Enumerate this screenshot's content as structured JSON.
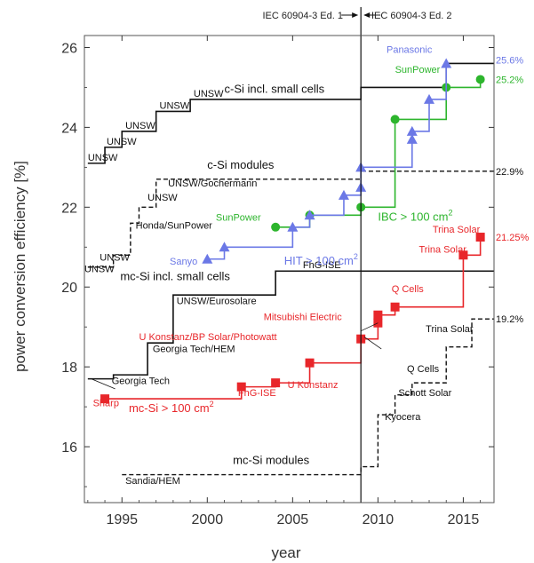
{
  "chart_data": {
    "type": "line",
    "xlabel": "year",
    "ylabel": "power conversion efficiency [%]",
    "xlim": [
      1992.8,
      2016.8
    ],
    "ylim": [
      14.6,
      26.3
    ],
    "x_ticks": [
      1995,
      2000,
      2005,
      2010,
      2015
    ],
    "y_ticks": [
      16,
      18,
      20,
      22,
      24,
      26
    ],
    "grid": false,
    "standards": {
      "divider_year": 2009,
      "left_label": "IEC 60904-3 Ed. 1",
      "right_label": "IEC 60904-3 Ed. 2"
    },
    "colors": {
      "black": "#111111",
      "green": "#2db52d",
      "blue": "#6b78e6",
      "red": "#e8262a"
    },
    "series": [
      {
        "name": "c-Si incl. small cells",
        "color": "black",
        "dash": false,
        "marker": "none",
        "steps": [
          [
            1993,
            23.1
          ],
          [
            1994,
            23.5
          ],
          [
            1995,
            23.9
          ],
          [
            1997,
            24.4
          ],
          [
            1999,
            24.7
          ],
          [
            2009,
            25.0
          ],
          [
            2014,
            25.6
          ],
          [
            2016.8,
            25.6
          ]
        ],
        "end_value": "25.6%"
      },
      {
        "name": "c-Si modules",
        "color": "black",
        "dash": true,
        "marker": "none",
        "steps": [
          [
            1993,
            20.5
          ],
          [
            1994.5,
            20.8
          ],
          [
            1995.5,
            21.6
          ],
          [
            1996,
            22.0
          ],
          [
            1997,
            22.7
          ],
          [
            2009,
            22.9
          ],
          [
            2016.8,
            22.9
          ]
        ],
        "end_value": "22.9%"
      },
      {
        "name": "mc-Si incl. small cells",
        "color": "black",
        "dash": false,
        "marker": "none",
        "steps": [
          [
            1993,
            17.7
          ],
          [
            1994.5,
            17.8
          ],
          [
            1996.5,
            18.6
          ],
          [
            1998,
            19.8
          ],
          [
            2004,
            20.4
          ],
          [
            2016.8,
            20.4
          ]
        ],
        "end_value": ""
      },
      {
        "name": "mc-Si modules",
        "color": "black",
        "dash": true,
        "marker": "none",
        "steps": [
          [
            1995,
            15.3
          ],
          [
            2009,
            15.5
          ],
          [
            2010,
            16.8
          ],
          [
            2011,
            17.3
          ],
          [
            2012,
            17.6
          ],
          [
            2014,
            18.5
          ],
          [
            2015.5,
            19.2
          ],
          [
            2016.8,
            19.2
          ]
        ],
        "end_value": "19.2%"
      },
      {
        "name": "SunPower IBC > 100 cm2",
        "color": "green",
        "dash": false,
        "marker": "circle",
        "points": [
          [
            2004,
            21.5
          ],
          [
            2006,
            21.8
          ],
          [
            2009,
            22.0
          ],
          [
            2011,
            24.2
          ],
          [
            2014,
            25.0
          ],
          [
            2016,
            25.2
          ]
        ],
        "end_value": "25.2%"
      },
      {
        "name": "Sanyo/Panasonic HIT > 100 cm2",
        "color": "blue",
        "dash": false,
        "marker": "triangle",
        "points": [
          [
            2000,
            20.7
          ],
          [
            2001,
            21.0
          ],
          [
            2005,
            21.5
          ],
          [
            2006,
            21.8
          ],
          [
            2008,
            22.3
          ],
          [
            2009,
            22.5
          ],
          [
            2009,
            23.0
          ],
          [
            2012,
            23.7
          ],
          [
            2012,
            23.9
          ],
          [
            2013,
            24.7
          ],
          [
            2014,
            25.6
          ]
        ],
        "end_value": "25.6%"
      },
      {
        "name": "mc-Si > 100 cm2",
        "color": "red",
        "dash": false,
        "marker": "square",
        "points": [
          [
            1994,
            17.2
          ],
          [
            2002,
            17.5
          ],
          [
            2004,
            17.6
          ],
          [
            2006,
            18.1
          ],
          [
            2009,
            18.7
          ],
          [
            2010,
            19.1
          ],
          [
            2010,
            19.3
          ],
          [
            2011,
            19.5
          ],
          [
            2015,
            20.8
          ],
          [
            2016,
            21.25
          ]
        ],
        "end_value": "21.25%"
      }
    ],
    "annotations": [
      {
        "text": "UNSW",
        "x": 1993,
        "y": 23.1,
        "color": "black"
      },
      {
        "text": "UNSW",
        "x": 1994.1,
        "y": 23.5,
        "color": "black"
      },
      {
        "text": "UNSW",
        "x": 1995.2,
        "y": 23.9,
        "color": "black"
      },
      {
        "text": "UNSW",
        "x": 1997.2,
        "y": 24.4,
        "color": "black"
      },
      {
        "text": "UNSW",
        "x": 1999.2,
        "y": 24.7,
        "color": "black"
      },
      {
        "text": "c-Si incl. small cells",
        "x": 2001,
        "y": 24.8,
        "color": "black",
        "big": true
      },
      {
        "text": "c-Si modules",
        "x": 2000,
        "y": 22.9,
        "color": "black",
        "big": true
      },
      {
        "text": "UNSW/Gochermann",
        "x": 1997.7,
        "y": 22.45,
        "color": "black"
      },
      {
        "text": "UNSW",
        "x": 1996.5,
        "y": 22.1,
        "color": "black"
      },
      {
        "text": "Honda/SunPower",
        "x": 1995.8,
        "y": 21.4,
        "color": "black"
      },
      {
        "text": "UNSW",
        "x": 1993.7,
        "y": 20.6,
        "color": "black"
      },
      {
        "text": "UNSW",
        "x": 1992.8,
        "y": 20.3,
        "color": "black"
      },
      {
        "text": "mc-Si incl. small cells",
        "x": 1994.9,
        "y": 20.1,
        "color": "black",
        "big": true
      },
      {
        "text": "FhG-ISE",
        "x": 2005.6,
        "y": 20.4,
        "color": "black"
      },
      {
        "text": "UNSW/Eurosolare",
        "x": 1998.2,
        "y": 19.5,
        "color": "black"
      },
      {
        "text": "Georgia Tech/HEM",
        "x": 1996.8,
        "y": 18.3,
        "color": "black"
      },
      {
        "text": "Georgia Tech",
        "x": 1994.4,
        "y": 17.5,
        "color": "black"
      },
      {
        "text": "mc-Si modules",
        "x": 2001.5,
        "y": 15.5,
        "color": "black",
        "big": true
      },
      {
        "text": "Sandia/HEM",
        "x": 1995.2,
        "y": 15.0,
        "color": "black"
      },
      {
        "text": "Trina Solar",
        "x": 2012.8,
        "y": 18.8,
        "color": "black"
      },
      {
        "text": "Q Cells",
        "x": 2011.7,
        "y": 17.8,
        "color": "black"
      },
      {
        "text": "Schott Solar",
        "x": 2011.2,
        "y": 17.2,
        "color": "black"
      },
      {
        "text": "Kyocera",
        "x": 2010.4,
        "y": 16.6,
        "color": "black"
      },
      {
        "text": "Panasonic",
        "x": 2010.5,
        "y": 25.8,
        "color": "blue"
      },
      {
        "text": "SunPower",
        "x": 2011,
        "y": 25.3,
        "color": "green"
      },
      {
        "text": "SunPower",
        "x": 2000.5,
        "y": 21.6,
        "color": "green"
      },
      {
        "text": "IBC > 100 cm",
        "x": 2010,
        "y": 21.6,
        "color": "green",
        "big": true,
        "sup": "2"
      },
      {
        "text": "HIT > 100 cm",
        "x": 2004.5,
        "y": 20.5,
        "color": "blue",
        "big": true,
        "sup": "2"
      },
      {
        "text": "Sanyo",
        "x": 1997.8,
        "y": 20.5,
        "color": "blue"
      },
      {
        "text": "Trina Solar",
        "x": 2013.2,
        "y": 21.3,
        "color": "red"
      },
      {
        "text": "Trina Solar",
        "x": 2012.4,
        "y": 20.8,
        "color": "red"
      },
      {
        "text": "Q Cells",
        "x": 2010.8,
        "y": 19.8,
        "color": "red"
      },
      {
        "text": "Mitsubishi Electric",
        "x": 2003.3,
        "y": 19.1,
        "color": "red"
      },
      {
        "text": "U Konstanz/BP Solar/Photowatt",
        "x": 1996,
        "y": 18.6,
        "color": "red"
      },
      {
        "text": "FhG-ISE",
        "x": 2001.8,
        "y": 17.2,
        "color": "red"
      },
      {
        "text": "U Konstanz",
        "x": 2004.7,
        "y": 17.4,
        "color": "red"
      },
      {
        "text": "Sharp",
        "x": 1993.3,
        "y": 16.95,
        "color": "red"
      },
      {
        "text": "mc-Si > 100 cm",
        "x": 1995.4,
        "y": 16.8,
        "color": "red",
        "big": true,
        "sup": "2"
      }
    ]
  }
}
